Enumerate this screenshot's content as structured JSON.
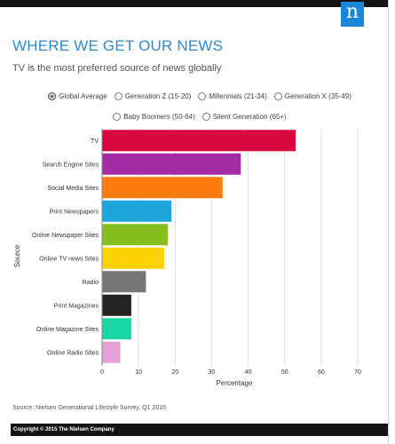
{
  "header": {
    "logo_text": "n"
  },
  "title": "WHERE WE GET OUR NEWS",
  "subtitle": "TV is the most preferred source of news globally",
  "filters": {
    "rows": [
      [
        {
          "label": "Global Average",
          "selected": true
        },
        {
          "label": "Generation Z (15-20)",
          "selected": false
        },
        {
          "label": "Millennials (21-34)",
          "selected": false
        },
        {
          "label": "Generation X (35-49)",
          "selected": false
        }
      ],
      [
        {
          "label": "Baby Boomers (50-64)",
          "selected": false
        },
        {
          "label": "Silent Generation (65+)",
          "selected": false
        }
      ]
    ]
  },
  "chart_data": {
    "type": "bar",
    "orientation": "horizontal",
    "categories": [
      "TV",
      "Search Engine Sites",
      "Social Media Sites",
      "Print Newspapers",
      "Online Newspaper Sites",
      "Online TV news Sites",
      "Radio",
      "Print Magazines",
      "Online Magazine Sites",
      "Online Radio Sites"
    ],
    "values": [
      53,
      38,
      33,
      19,
      18,
      17,
      12,
      8,
      8,
      5
    ],
    "colors": [
      "#d8053f",
      "#a32ba6",
      "#fb7d0d",
      "#1da6db",
      "#84bf1d",
      "#fcd106",
      "#777777",
      "#232323",
      "#1cd6a6",
      "#e3a1d8"
    ],
    "xlabel": "Percentage",
    "ylabel": "Source",
    "xlim": [
      0,
      70
    ],
    "xticks": [
      0,
      10,
      20,
      30,
      40,
      50,
      60,
      70
    ],
    "grid": true
  },
  "source": "Source: Nielsen Generational Lifestyle Survey, Q1 2015",
  "footer": "Copyright © 2015 The Nielsen Company"
}
